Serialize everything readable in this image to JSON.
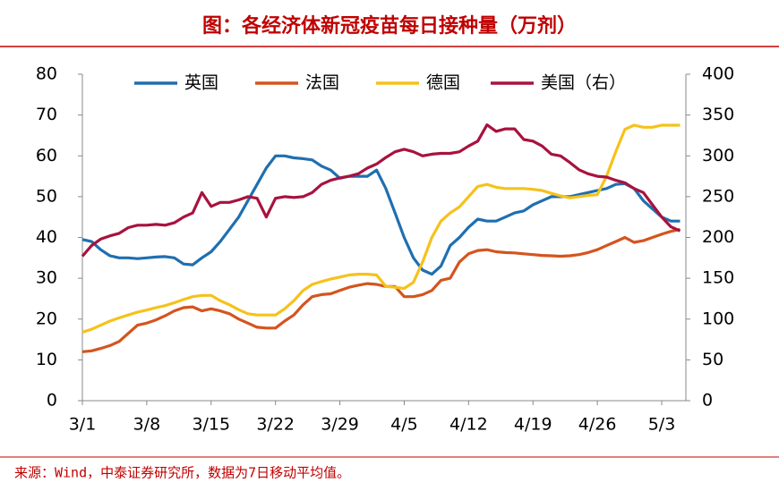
{
  "chart_data": {
    "type": "line",
    "title": "图：各经济体新冠疫苗每日接种量（万剂）",
    "source": "来源：Wind，中泰证券研究所，数据为7日移动平均值。",
    "categories": [
      "3/1",
      null,
      null,
      null,
      null,
      null,
      null,
      "3/8",
      null,
      null,
      null,
      null,
      null,
      null,
      "3/15",
      null,
      null,
      null,
      null,
      null,
      null,
      "3/22",
      null,
      null,
      null,
      null,
      null,
      null,
      "3/29",
      null,
      null,
      null,
      null,
      null,
      null,
      "4/5",
      null,
      null,
      null,
      null,
      null,
      null,
      "4/12",
      null,
      null,
      null,
      null,
      null,
      null,
      "4/19",
      null,
      null,
      null,
      null,
      null,
      null,
      "4/26",
      null,
      null,
      null,
      null,
      null,
      null,
      "5/3",
      null,
      null
    ],
    "series": [
      {
        "name": "英国",
        "color": "#1f6fb0",
        "values": [
          39.5,
          39,
          37,
          35.5,
          35,
          35,
          34.8,
          35,
          35.2,
          35.3,
          35,
          33.5,
          33.3,
          35,
          36.5,
          39,
          42,
          45,
          49,
          53,
          57,
          60,
          60,
          59.5,
          59.3,
          59,
          57.5,
          56.5,
          54.5,
          55,
          55,
          55,
          56.5,
          52,
          46,
          40,
          35,
          32,
          31,
          33,
          38,
          40,
          42.5,
          44.5,
          44,
          44,
          45,
          46,
          46.5,
          48,
          49,
          50,
          50,
          50,
          50.5,
          51,
          51.5,
          52,
          53,
          53.2,
          52,
          49,
          47,
          45,
          44,
          44
        ]
      },
      {
        "name": "法国",
        "color": "#d4541e",
        "values": [
          12,
          12.2,
          12.8,
          13.5,
          14.5,
          16.5,
          18.5,
          19,
          19.8,
          20.8,
          22,
          22.8,
          23,
          22,
          22.5,
          22,
          21.3,
          20,
          19,
          18,
          17.8,
          17.8,
          19.5,
          21,
          23.5,
          25.5,
          26,
          26.2,
          27,
          27.8,
          28.3,
          28.7,
          28.5,
          28,
          28,
          25.5,
          25.5,
          26,
          27,
          29.5,
          30,
          34,
          36,
          36.8,
          37,
          36.5,
          36.3,
          36.2,
          36,
          35.8,
          35.6,
          35.5,
          35.4,
          35.5,
          35.8,
          36.3,
          37,
          38,
          39,
          40,
          38.8,
          39.2,
          40,
          40.8,
          41.5,
          42
        ]
      },
      {
        "name": "德国",
        "color": "#f5c21b",
        "values": [
          16.8,
          17.5,
          18.5,
          19.5,
          20.3,
          21,
          21.7,
          22.2,
          22.8,
          23.3,
          24,
          24.8,
          25.5,
          25.8,
          25.8,
          24.5,
          23.5,
          22.3,
          21.3,
          21,
          21,
          21,
          22.5,
          24.5,
          27,
          28.5,
          29.2,
          29.8,
          30.3,
          30.8,
          31,
          31,
          30.8,
          28,
          27.8,
          27.5,
          29,
          34,
          40,
          44,
          46,
          47.5,
          50,
          52.5,
          53,
          52.3,
          52,
          52,
          52,
          51.8,
          51.5,
          50.8,
          50.2,
          49.7,
          50,
          50.3,
          50.5,
          55,
          61,
          66.5,
          67.5,
          67,
          67,
          67.5,
          67.5,
          67.5
        ]
      },
      {
        "name": "美国（右）",
        "color": "#a8123e",
        "axis": "y2",
        "values": [
          177,
          190,
          198,
          202,
          205,
          212,
          215,
          215,
          216,
          215,
          218,
          225,
          230,
          255,
          238,
          243,
          243,
          246,
          250,
          248,
          225,
          248,
          250,
          249,
          250,
          255,
          265,
          270,
          273,
          275,
          278,
          285,
          290,
          298,
          305,
          308,
          305,
          300,
          302,
          303,
          303,
          305,
          312,
          318,
          338,
          330,
          333,
          333,
          320,
          318,
          312,
          302,
          300,
          292,
          283,
          278,
          275,
          274,
          270,
          267,
          260,
          255,
          240,
          225,
          213,
          208
        ]
      }
    ],
    "ylim": [
      0,
      80
    ],
    "yticks": [
      0,
      10,
      20,
      30,
      40,
      50,
      60,
      70,
      80
    ],
    "y2lim": [
      0,
      400
    ],
    "y2ticks": [
      0,
      50,
      100,
      150,
      200,
      250,
      300,
      350,
      400
    ],
    "legend": "top",
    "grid": false
  }
}
